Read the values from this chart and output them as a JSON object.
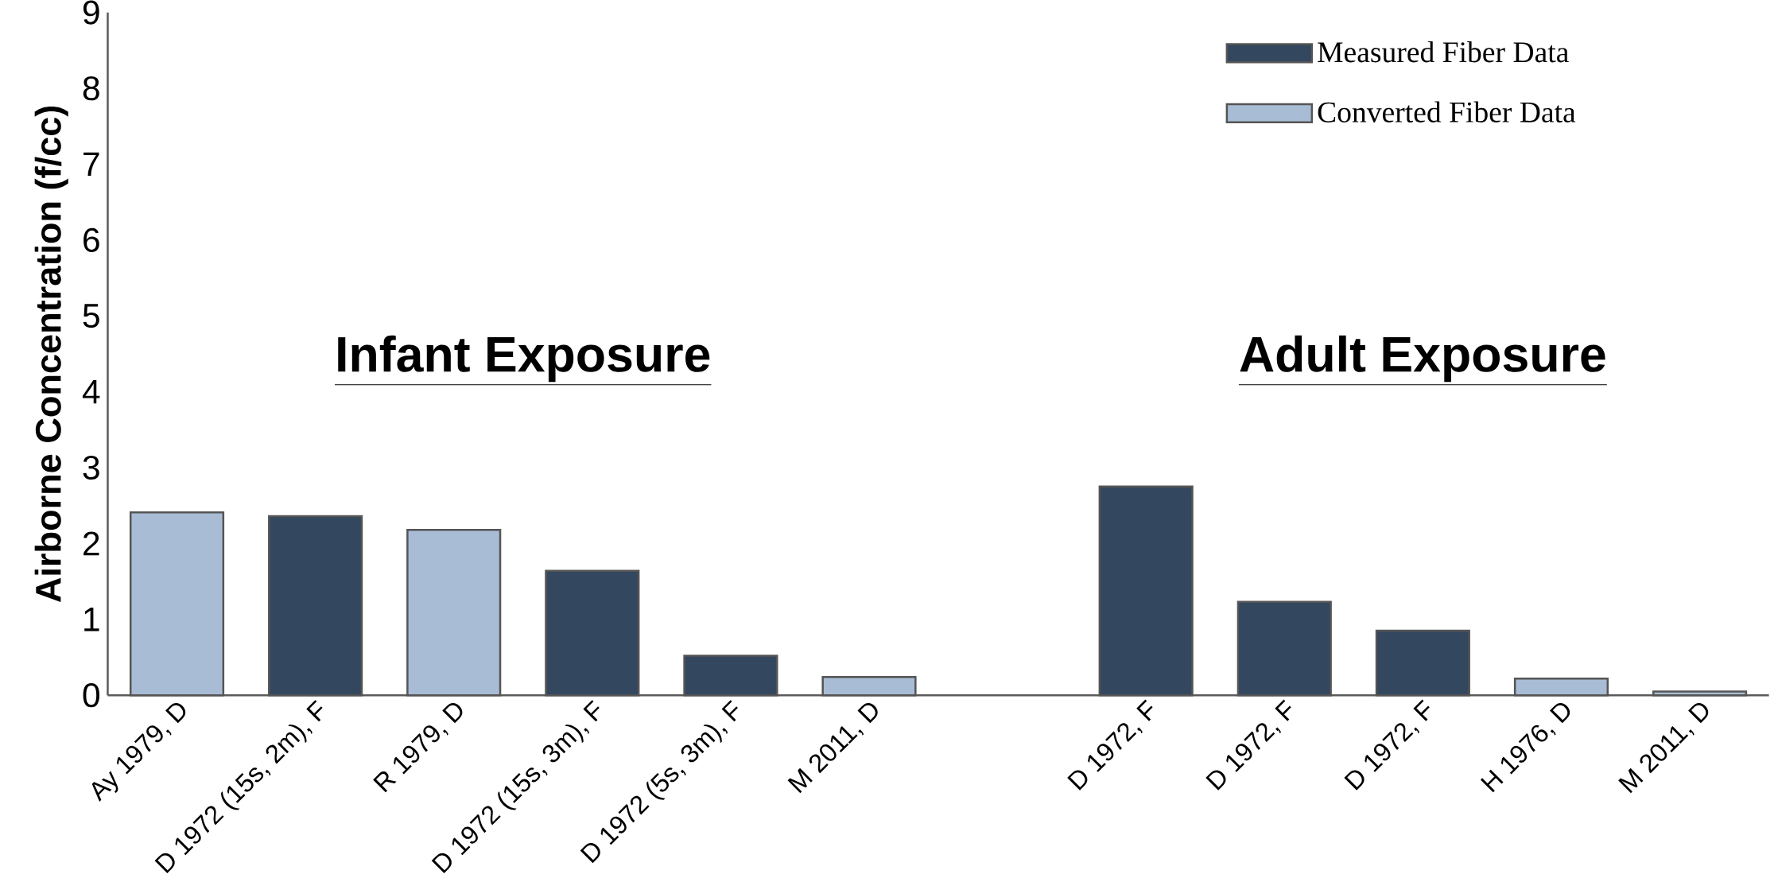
{
  "chart_data": {
    "type": "bar",
    "ylabel": "Airborne Concentration (f/cc)",
    "categories": [
      "Ay 1979, D",
      "D 1972 (15s, 2m), F",
      "R 1979, D",
      "D 1972 (15s, 3m), F",
      "D 1972 (5s, 3m), F",
      "M 2011, D",
      null,
      "D 1972, F",
      "D 1972, F",
      "D 1972, F",
      "H 1976, D",
      "M 2011, D"
    ],
    "series": [
      {
        "name": "Measured Fiber Data",
        "color": "#33475f",
        "values": [
          null,
          2.36,
          null,
          1.64,
          0.52,
          null,
          null,
          2.75,
          1.23,
          0.85,
          null,
          null
        ]
      },
      {
        "name": "Converted Fiber Data",
        "color": "#a9bcd5",
        "values": [
          2.41,
          null,
          2.18,
          null,
          null,
          0.24,
          null,
          null,
          null,
          null,
          0.22,
          0.05
        ]
      }
    ],
    "ylim": [
      0,
      9
    ],
    "yticks": [
      0,
      1,
      2,
      3,
      4,
      5,
      6,
      7,
      8,
      9
    ],
    "legend": "top right",
    "annotations": [
      "**Infant Exposure**",
      "**Adult Exposure**"
    ]
  }
}
